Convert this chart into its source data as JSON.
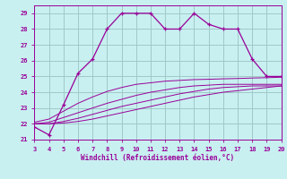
{
  "xlabel": "Windchill (Refroidissement éolien,°C)",
  "bg_color": "#c8f0f0",
  "grid_color": "#a0c8c8",
  "line_color": "#990099",
  "xlim": [
    3,
    20
  ],
  "ylim": [
    21,
    29.5
  ],
  "xticks": [
    3,
    4,
    5,
    6,
    7,
    8,
    9,
    10,
    11,
    12,
    13,
    14,
    15,
    16,
    17,
    18,
    19,
    20
  ],
  "yticks": [
    21,
    22,
    23,
    24,
    25,
    26,
    27,
    28,
    29
  ],
  "main_x": [
    3,
    4,
    5,
    6,
    7,
    8,
    9,
    10,
    11,
    12,
    13,
    14,
    15,
    16,
    17,
    18,
    19,
    20
  ],
  "main_y": [
    21.8,
    21.3,
    23.2,
    25.2,
    26.1,
    28.0,
    29.0,
    29.0,
    29.0,
    28.0,
    28.0,
    29.0,
    28.3,
    28.0,
    28.0,
    26.1,
    25.0,
    25.0
  ],
  "line2_x": [
    3,
    4,
    5,
    6,
    7,
    8,
    9,
    10,
    11,
    12,
    13,
    14,
    15,
    16,
    17,
    18,
    19,
    20
  ],
  "line2_y": [
    22.0,
    22.0,
    22.05,
    22.15,
    22.3,
    22.5,
    22.7,
    22.9,
    23.1,
    23.3,
    23.5,
    23.7,
    23.85,
    24.0,
    24.1,
    24.2,
    24.3,
    24.4
  ],
  "line3_x": [
    3,
    4,
    5,
    6,
    7,
    8,
    9,
    10,
    11,
    12,
    13,
    14,
    15,
    16,
    17,
    18,
    19,
    20
  ],
  "line3_y": [
    22.0,
    22.0,
    22.15,
    22.35,
    22.6,
    22.85,
    23.1,
    23.3,
    23.5,
    23.7,
    23.9,
    24.05,
    24.2,
    24.3,
    24.35,
    24.4,
    24.4,
    24.4
  ],
  "line4_x": [
    3,
    4,
    5,
    6,
    7,
    8,
    9,
    10,
    11,
    12,
    13,
    14,
    15,
    16,
    17,
    18,
    19,
    20
  ],
  "line4_y": [
    22.0,
    22.1,
    22.4,
    22.7,
    23.0,
    23.3,
    23.55,
    23.8,
    24.0,
    24.15,
    24.3,
    24.4,
    24.45,
    24.5,
    24.5,
    24.5,
    24.5,
    24.5
  ],
  "line5_x": [
    3,
    4,
    5,
    6,
    7,
    8,
    9,
    10,
    11,
    12,
    13,
    14,
    15,
    16,
    17,
    18,
    19,
    20
  ],
  "line5_y": [
    22.1,
    22.3,
    22.8,
    23.3,
    23.7,
    24.05,
    24.3,
    24.5,
    24.6,
    24.7,
    24.75,
    24.8,
    24.82,
    24.85,
    24.87,
    24.9,
    24.92,
    24.95
  ]
}
